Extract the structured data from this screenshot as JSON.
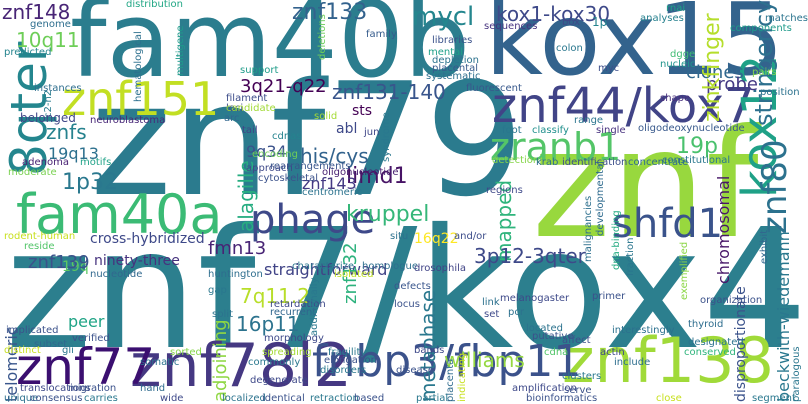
{
  "words": [
    {
      "text": "znf7/kox4",
      "color": "#2c7f8e"
    },
    {
      "text": "znf79",
      "color": "#2b7b8e"
    },
    {
      "text": "znf",
      "color": "#98d83e"
    },
    {
      "text": "fam40b",
      "color": "#2b7d8e"
    },
    {
      "text": "kox15",
      "color": "#33638d"
    },
    {
      "text": "znf78l2",
      "color": "#453882"
    },
    {
      "text": "znf44/kox7",
      "color": "#414487"
    },
    {
      "text": "znf138",
      "color": "#a0da39"
    },
    {
      "text": "znf77",
      "color": "#3b0f70"
    },
    {
      "text": "fam40a",
      "color": "#3bbb75"
    },
    {
      "text": "8qter",
      "color": "#24868e"
    },
    {
      "text": "znf151",
      "color": "#c2df23"
    },
    {
      "text": "fnbp3/fbp11",
      "color": "#3b528b"
    },
    {
      "text": "phage",
      "color": "#3e4989"
    },
    {
      "text": "shfd1",
      "color": "#3a538b"
    },
    {
      "text": "kox12",
      "color": "#1fa187"
    },
    {
      "text": "zranb1",
      "color": "#54c568"
    },
    {
      "text": "znf80",
      "color": "#2c728e"
    },
    {
      "text": "znf148",
      "color": "#482576"
    },
    {
      "text": "znf133",
      "color": "#33628d"
    },
    {
      "text": "mycl",
      "color": "#24868e"
    },
    {
      "text": "kox1-kox30",
      "color": "#3e4989"
    },
    {
      "text": "10q11",
      "color": "#6ece58"
    },
    {
      "text": "3q21-q22",
      "color": "#440154"
    },
    {
      "text": "znf131-140",
      "color": "#39558c"
    },
    {
      "text": "stringency",
      "color": "#2d708e"
    },
    {
      "text": "clones",
      "color": "#31688e"
    },
    {
      "text": "probe",
      "color": "#443983"
    },
    {
      "text": "19p",
      "color": "#4ac16d"
    },
    {
      "text": "zinkfinger",
      "color": "#b5de2b"
    },
    {
      "text": "znfs",
      "color": "#26828e"
    },
    {
      "text": "19q13",
      "color": "#2d708e"
    },
    {
      "text": "1p32",
      "color": "#2a788e"
    },
    {
      "text": "limd1",
      "color": "#471365"
    },
    {
      "text": "his/cys",
      "color": "#33638d"
    },
    {
      "text": "abl",
      "color": "#3e4989"
    },
    {
      "text": "sts",
      "color": "#440154"
    },
    {
      "text": "9q34",
      "color": "#3b528b"
    },
    {
      "text": "alagille",
      "color": "#27ad81"
    },
    {
      "text": "kruppel",
      "color": "#35b779"
    },
    {
      "text": "znf143",
      "color": "#443983"
    },
    {
      "text": "mapped",
      "color": "#2fb47c"
    },
    {
      "text": "chromosomal",
      "color": "#481769"
    },
    {
      "text": "beckwith-wiedemann",
      "color": "#2a788e"
    },
    {
      "text": "williams",
      "color": "#95d840"
    },
    {
      "text": "fmn13",
      "color": "#482475"
    },
    {
      "text": "cross-hybridized",
      "color": "#3e4989"
    },
    {
      "text": "19q",
      "color": "#5cc863"
    },
    {
      "text": "znf139",
      "color": "#3b528b"
    },
    {
      "text": "telomeric",
      "color": "#39568c"
    },
    {
      "text": "ninety-three",
      "color": "#46327e"
    },
    {
      "text": "straightforward",
      "color": "#414487"
    },
    {
      "text": "7q11.2",
      "color": "#b8de29"
    },
    {
      "text": "16p11",
      "color": "#2c738e"
    },
    {
      "text": "adjoining",
      "color": "#8fd744"
    },
    {
      "text": "3p12-3qter",
      "color": "#3e4989"
    },
    {
      "text": "znf132",
      "color": "#2db27d"
    },
    {
      "text": "metaphase",
      "color": "#2a788e"
    },
    {
      "text": "16q22",
      "color": "#fde725"
    },
    {
      "text": "peer",
      "color": "#20a486"
    },
    {
      "text": "disproportionate",
      "color": "#3b528b"
    },
    {
      "text": "neuroblastoma",
      "color": "#482878"
    },
    {
      "text": "multigene",
      "color": "#1f9a8a"
    },
    {
      "text": "hematological",
      "color": "#2d708e"
    },
    {
      "text": "c2-h2",
      "color": "#287c8e"
    },
    {
      "text": "adenoma",
      "color": "#482173"
    },
    {
      "text": "motifs",
      "color": "#1fa287"
    },
    {
      "text": "moderate",
      "color": "#7ad151"
    },
    {
      "text": "rodent-human",
      "color": "#c8e020"
    },
    {
      "text": "reside",
      "color": "#52c569"
    },
    {
      "text": "distribution",
      "color": "#22a785"
    },
    {
      "text": "genome",
      "color": "#2e6e8e"
    },
    {
      "text": "predicted",
      "color": "#25848e"
    },
    {
      "text": "deletions",
      "color": "#6ccd5a"
    },
    {
      "text": "family",
      "color": "#365c8d"
    },
    {
      "text": "libraries",
      "color": "#3b528b"
    },
    {
      "text": "mental",
      "color": "#1fa088"
    },
    {
      "text": "depletion",
      "color": "#2c738e"
    },
    {
      "text": "placental",
      "color": "#375a8c"
    },
    {
      "text": "systematic",
      "color": "#2e6f8e"
    },
    {
      "text": "sequences",
      "color": "#46337f"
    },
    {
      "text": "box",
      "color": "#3e4a89"
    },
    {
      "text": "1p",
      "color": "#25848e"
    },
    {
      "text": "colon",
      "color": "#2a778e"
    },
    {
      "text": "myc",
      "color": "#3d4e8a"
    },
    {
      "text": "analyses",
      "color": "#26818e"
    },
    {
      "text": "rnai",
      "color": "#1fa188"
    },
    {
      "text": "dgge",
      "color": "#3fbc73"
    },
    {
      "text": "nucleic",
      "color": "#1f948c"
    },
    {
      "text": "shape",
      "color": "#472f7d"
    },
    {
      "text": "matches",
      "color": "#2b748e"
    },
    {
      "text": "components",
      "color": "#1e9b8a"
    },
    {
      "text": "pairs",
      "color": "#7fd34e"
    },
    {
      "text": "position",
      "color": "#2c728e"
    },
    {
      "text": "instances",
      "color": "#2e6e8e"
    },
    {
      "text": "belonged",
      "color": "#3f4788"
    },
    {
      "text": "support",
      "color": "#1e9c89"
    },
    {
      "text": "arc",
      "color": "#31678e"
    },
    {
      "text": "tail",
      "color": "#414487"
    },
    {
      "text": "loci",
      "color": "#3e4a89"
    },
    {
      "text": "filament",
      "color": "#3d4d8a"
    },
    {
      "text": "candidate",
      "color": "#a2da37"
    },
    {
      "text": "fluorescent",
      "color": "#38588c"
    },
    {
      "text": "solid",
      "color": "#a5db36"
    },
    {
      "text": "syndrome",
      "color": "#2a788e"
    },
    {
      "text": "jun",
      "color": "#3f4788"
    },
    {
      "text": "cdnas",
      "color": "#25838e"
    },
    {
      "text": "rearrangements",
      "color": "#39568c"
    },
    {
      "text": "approach",
      "color": "#3e4989"
    },
    {
      "text": "centromeric",
      "color": "#2c738e"
    },
    {
      "text": "cytoskeletal",
      "color": "#3b528b"
    },
    {
      "text": "encoding",
      "color": "#6ece58"
    },
    {
      "text": "oligonucleotide",
      "color": "#482071"
    },
    {
      "text": "foot",
      "color": "#2a768e"
    },
    {
      "text": "classify",
      "color": "#21908d"
    },
    {
      "text": "single",
      "color": "#46307e"
    },
    {
      "text": "range",
      "color": "#2b758e"
    },
    {
      "text": "oligodeoxynucleotide",
      "color": "#38598c"
    },
    {
      "text": "constitutional",
      "color": "#2a778e"
    },
    {
      "text": "detection",
      "color": "#86d549"
    },
    {
      "text": "krab",
      "color": "#2e6d8e"
    },
    {
      "text": "identification",
      "color": "#3c4f8a"
    },
    {
      "text": "concentrate",
      "color": "#2f6b8e"
    },
    {
      "text": "regions",
      "color": "#3e4989"
    },
    {
      "text": "developmental",
      "color": "#2f6b8e"
    },
    {
      "text": "malignancies",
      "color": "#2d708e"
    },
    {
      "text": "dna-binding",
      "color": "#25ab82"
    },
    {
      "text": "fraction",
      "color": "#2a768e"
    },
    {
      "text": "exemplified",
      "color": "#8bd646"
    },
    {
      "text": "exhibit",
      "color": "#31688e"
    },
    {
      "text": "huntington",
      "color": "#2e6e8e"
    },
    {
      "text": "characterize",
      "color": "#2b748e"
    },
    {
      "text": "homologue",
      "color": "#2e6f8e"
    },
    {
      "text": "isolated",
      "color": "#c0df25"
    },
    {
      "text": "drosophila",
      "color": "#414487"
    },
    {
      "text": "gap",
      "color": "#2a778e"
    },
    {
      "text": "and/or",
      "color": "#3d4d8a"
    },
    {
      "text": "nucleotide",
      "color": "#31688e"
    },
    {
      "text": "recurrent",
      "color": "#31668e"
    },
    {
      "text": "retardation",
      "color": "#3e4989"
    },
    {
      "text": "situ",
      "color": "#2c718e"
    },
    {
      "text": "defects",
      "color": "#39568c"
    },
    {
      "text": "locus",
      "color": "#3b528b"
    },
    {
      "text": "link",
      "color": "#2c718e"
    },
    {
      "text": "melanogaster",
      "color": "#3e4989"
    },
    {
      "text": "primer",
      "color": "#3b528b"
    },
    {
      "text": "set",
      "color": "#3e4989"
    },
    {
      "text": "pcr",
      "color": "#2d718e"
    },
    {
      "text": "organization",
      "color": "#3b528b"
    },
    {
      "text": "located",
      "color": "#2c738e"
    },
    {
      "text": "putative",
      "color": "#3b528b"
    },
    {
      "text": "affect",
      "color": "#3c508b"
    },
    {
      "text": "interestingly",
      "color": "#2c718e"
    },
    {
      "text": "thyroid",
      "color": "#2e6d8e"
    },
    {
      "text": "actin",
      "color": "#3e4989"
    },
    {
      "text": "include",
      "color": "#2e6e8e"
    },
    {
      "text": "cdna",
      "color": "#52c569"
    },
    {
      "text": "designated",
      "color": "#2c738e"
    },
    {
      "text": "conserved",
      "color": "#2fb47c"
    },
    {
      "text": "clusters",
      "color": "#2a788e"
    },
    {
      "text": "serve",
      "color": "#3b528b"
    },
    {
      "text": "paralogous",
      "color": "#2a768e"
    },
    {
      "text": "morphology",
      "color": "#3e4989"
    },
    {
      "text": "split",
      "color": "#2c738e"
    },
    {
      "text": "spreading",
      "color": "#a5db36"
    },
    {
      "text": "commonly",
      "color": "#2a788e"
    },
    {
      "text": "fragility",
      "color": "#2a788e"
    },
    {
      "text": "elongation",
      "color": "#3b528b"
    },
    {
      "text": "placenta",
      "color": "#2f6b8e"
    },
    {
      "text": "indicating",
      "color": "#c8e020"
    },
    {
      "text": "disorders",
      "color": "#2a788e"
    },
    {
      "text": "disease",
      "color": "#3b528b"
    },
    {
      "text": "bands",
      "color": "#3e4989"
    },
    {
      "text": "additionally",
      "color": "#2a788e"
    },
    {
      "text": "somatic",
      "color": "#2c738e"
    },
    {
      "text": "sorted",
      "color": "#86d549"
    },
    {
      "text": "verified",
      "color": "#3b528b"
    },
    {
      "text": "subset",
      "color": "#31688e"
    },
    {
      "text": "gli",
      "color": "#2a778e"
    },
    {
      "text": "distinct",
      "color": "#c8e020"
    },
    {
      "text": "implicated",
      "color": "#3b528b"
    },
    {
      "text": "translocations",
      "color": "#3e4989"
    },
    {
      "text": "migration",
      "color": "#3b528b"
    },
    {
      "text": "hand",
      "color": "#2f6b8e"
    },
    {
      "text": "degenerate",
      "color": "#3e4989"
    },
    {
      "text": "unique",
      "color": "#2c718e"
    },
    {
      "text": "consensus",
      "color": "#3b528b"
    },
    {
      "text": "carries",
      "color": "#2a788e"
    },
    {
      "text": "wide",
      "color": "#3e4989"
    },
    {
      "text": "localized",
      "color": "#2c738e"
    },
    {
      "text": "identical",
      "color": "#3b528b"
    },
    {
      "text": "retraction",
      "color": "#2a788e"
    },
    {
      "text": "based",
      "color": "#3b528b"
    },
    {
      "text": "partial",
      "color": "#2a788e"
    },
    {
      "text": "amplification",
      "color": "#3e4989"
    },
    {
      "text": "bioinformatics",
      "color": "#3b528b"
    },
    {
      "text": "close",
      "color": "#c8e020"
    },
    {
      "text": "segment",
      "color": "#2a788e"
    }
  ]
}
